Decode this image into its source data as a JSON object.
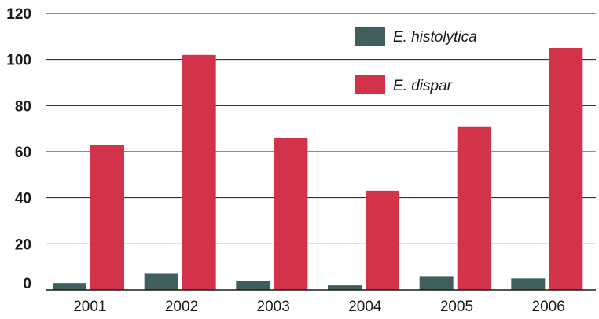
{
  "chart_data": {
    "type": "bar",
    "title": "",
    "xlabel": "",
    "ylabel": "",
    "categories": [
      "2001",
      "2002",
      "2003",
      "2004",
      "2005",
      "2006"
    ],
    "series": [
      {
        "name": "E. histolytica",
        "color": "#3f5f5c",
        "values": [
          3,
          7,
          4,
          2,
          6,
          5
        ]
      },
      {
        "name": "E. dispar",
        "color": "#d3334a",
        "values": [
          63,
          102,
          66,
          43,
          71,
          105
        ]
      }
    ],
    "ylim": [
      0,
      120
    ],
    "yticks": [
      "0",
      "20",
      "40",
      "60",
      "80",
      "100",
      "120"
    ],
    "grid": true,
    "legend_position": "top-right"
  }
}
